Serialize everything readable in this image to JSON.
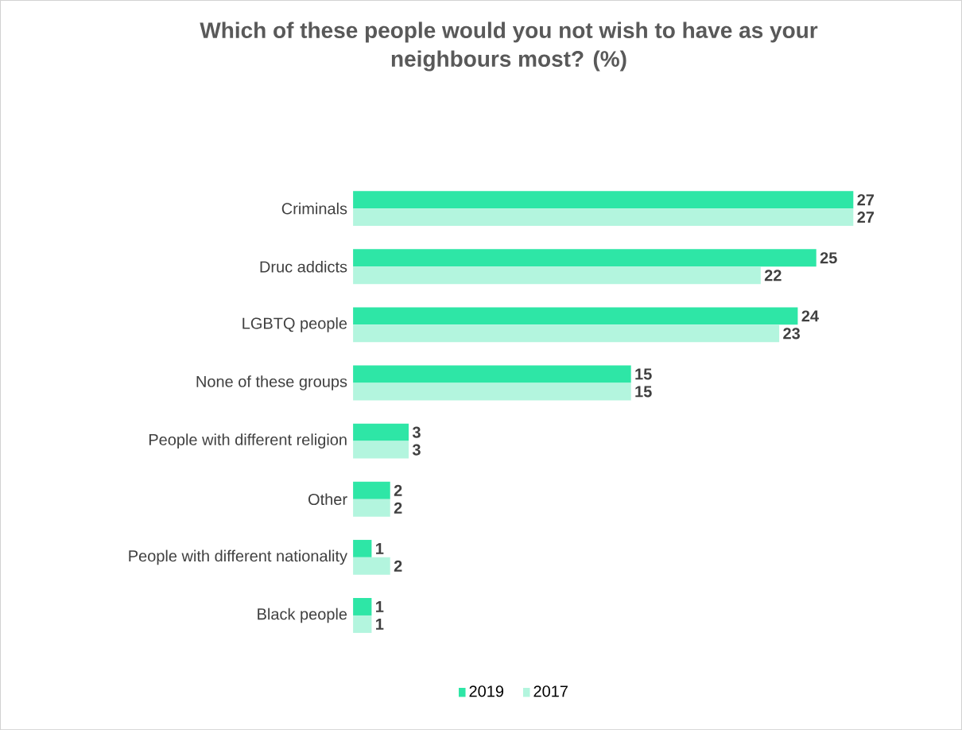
{
  "chart_data": {
    "type": "bar",
    "orientation": "horizontal",
    "title": "Which of these people would you not wish to have as your neighbours most? (%)",
    "categories": [
      "Criminals",
      "Druc addicts",
      "LGBTQ people",
      "None of these groups",
      "People with different religion",
      "Other",
      "People with different nationality",
      "Black people"
    ],
    "series": [
      {
        "name": "2019",
        "color": "#2ee6a6",
        "values": [
          27,
          25,
          24,
          15,
          3,
          2,
          1,
          1
        ]
      },
      {
        "name": "2017",
        "color": "#b3f5de",
        "values": [
          27,
          22,
          23,
          15,
          3,
          2,
          2,
          1
        ]
      }
    ],
    "data_labels": true,
    "legend": "bottom"
  }
}
